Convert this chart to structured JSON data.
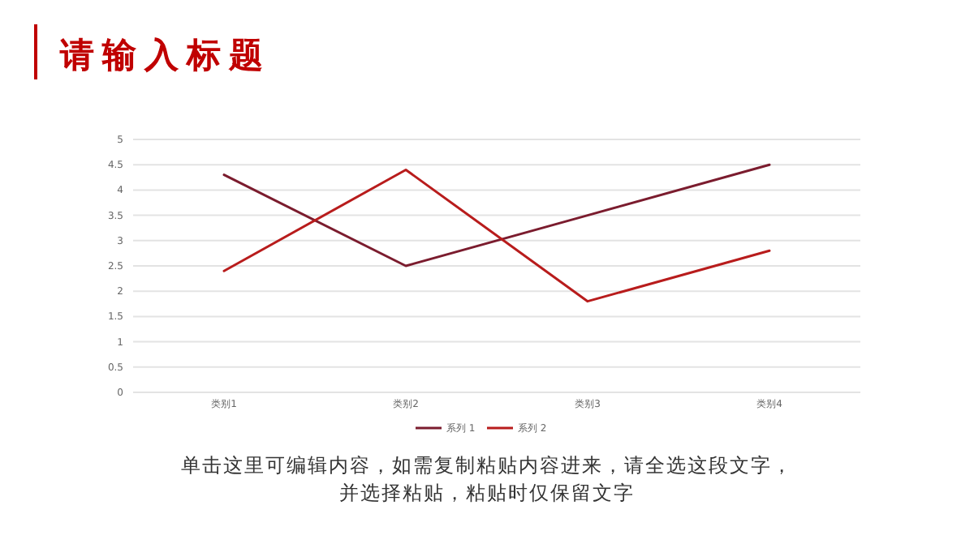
{
  "chart_data": {
    "type": "line",
    "title": "请输入标题",
    "categories": [
      "类别1",
      "类别2",
      "类别3",
      "类别4"
    ],
    "series": [
      {
        "name": "系列 1",
        "color": "#7b1c2e",
        "values": [
          4.3,
          2.5,
          3.5,
          4.5
        ]
      },
      {
        "name": "系列 2",
        "color": "#b81c1c",
        "values": [
          2.4,
          4.4,
          1.8,
          2.8
        ]
      }
    ],
    "ylim": [
      0,
      5
    ],
    "yticks": [
      0,
      0.5,
      1,
      1.5,
      2,
      2.5,
      3,
      3.5,
      4,
      4.5,
      5
    ],
    "grid": "y",
    "legend": "bottom",
    "annotations": [
      "单击这里可编辑内容，如需复制粘贴内容进来，请全选这段文字，并选择粘贴，粘贴时仅保留文字"
    ]
  }
}
